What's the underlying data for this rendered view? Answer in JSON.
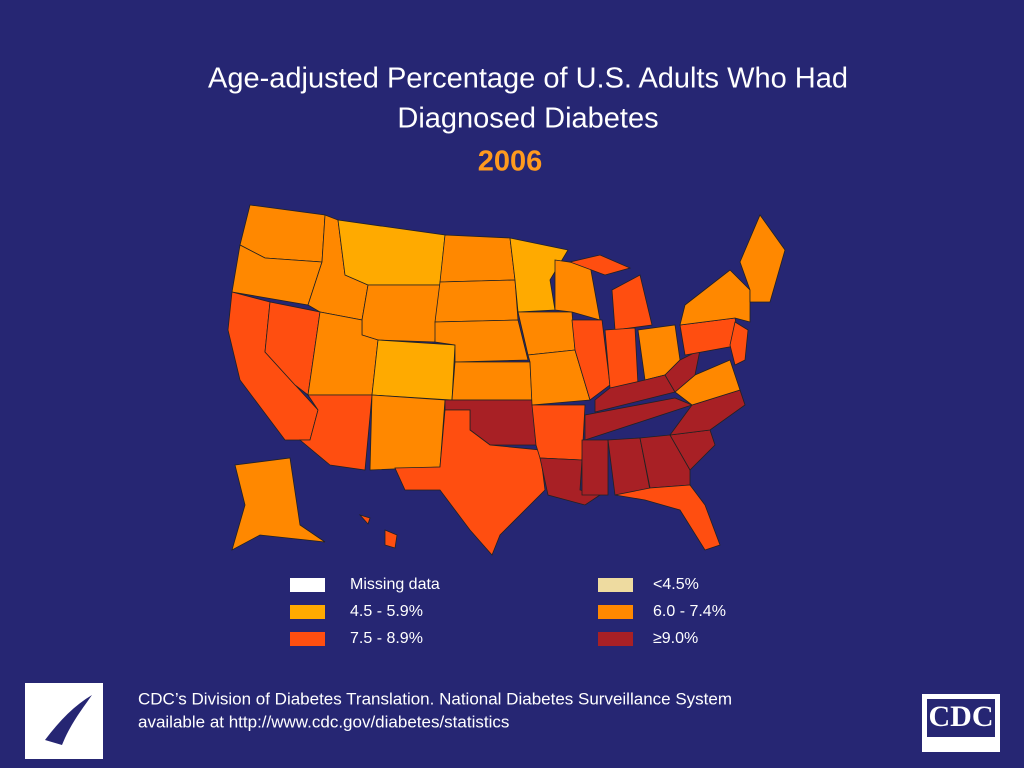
{
  "title_lines": [
    "Age-adjusted Percentage of U.S. Adults Who Had",
    "Diagnosed Diabetes"
  ],
  "year": "2006",
  "legend": [
    {
      "label": "Missing data",
      "color": "#ffffff"
    },
    {
      "label": "<4.5%",
      "color": "#eedba0"
    },
    {
      "label": "4.5 - 5.9%",
      "color": "#ffaa00"
    },
    {
      "label": "6.0 - 7.4%",
      "color": "#ff8800"
    },
    {
      "label": "7.5 - 8.9%",
      "color": "#ff4e10"
    },
    {
      "label": "≥9.0%",
      "color": "#a82025"
    }
  ],
  "footer_lines": [
    "CDC’s Division of Diabetes Translation.  National Diabetes Surveillance System",
    "available at http://www.cdc.gov/diabetes/statistics"
  ],
  "logo": "CDC"
}
